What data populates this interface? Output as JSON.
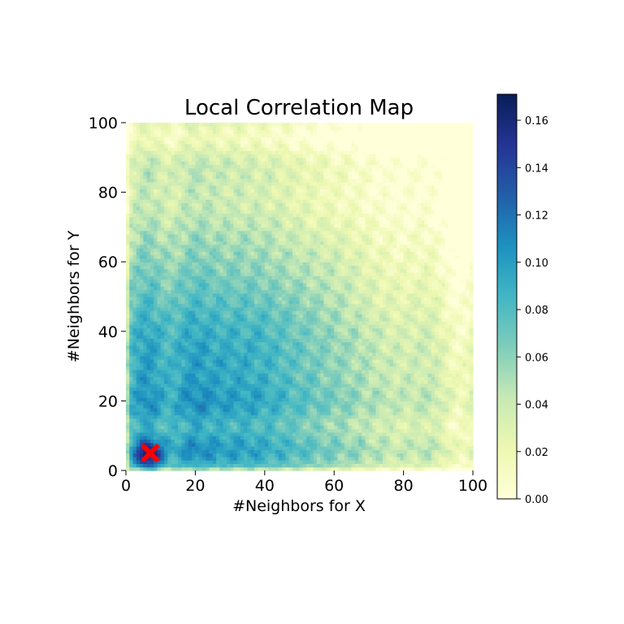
{
  "chart_data": {
    "type": "heatmap",
    "title": "Local Correlation Map",
    "xlabel": "#Neighbors for X",
    "ylabel": "#Neighbors for Y",
    "xlim": [
      0,
      100
    ],
    "ylim": [
      0,
      100
    ],
    "x_ticks": [
      "0",
      "20",
      "40",
      "60",
      "80",
      "100"
    ],
    "y_ticks": [
      "0",
      "20",
      "40",
      "60",
      "80",
      "100"
    ],
    "colorbar": {
      "colormap": "YlGnBu",
      "range": [
        0,
        0.171
      ],
      "ticks": [
        "0.00",
        "0.02",
        "0.04",
        "0.06",
        "0.08",
        "0.10",
        "0.12",
        "0.14",
        "0.16"
      ]
    },
    "marker": {
      "symbol": "X",
      "color": "#ff0000",
      "x": 7,
      "y": 5
    },
    "colors": {
      "marker": "#ff0000"
    }
  }
}
